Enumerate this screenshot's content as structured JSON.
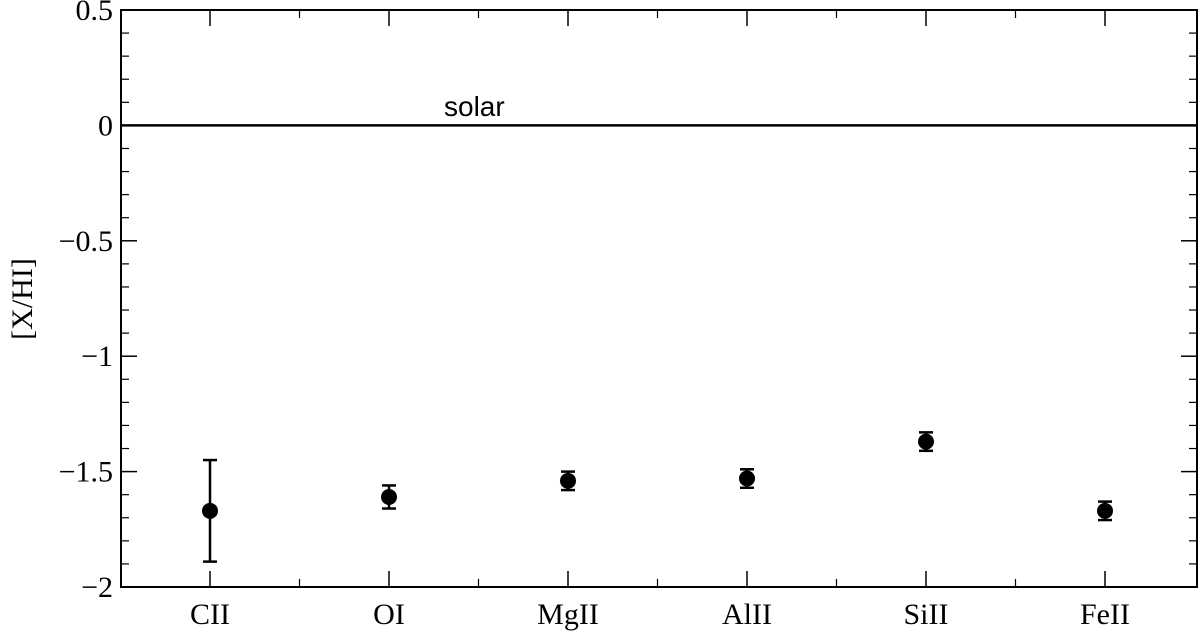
{
  "chart_data": {
    "type": "scatter",
    "title": "",
    "xlabel": "",
    "ylabel": "[X/HI]",
    "ylim": [
      -2,
      0.5
    ],
    "yticks": [
      {
        "value": 0.5,
        "label": "0.5"
      },
      {
        "value": 0,
        "label": "0"
      },
      {
        "value": -0.5,
        "label": "−0.5"
      },
      {
        "value": -1,
        "label": "−1"
      },
      {
        "value": -1.5,
        "label": "−1.5"
      },
      {
        "value": -2,
        "label": "−2"
      }
    ],
    "categories": [
      "CII",
      "OI",
      "MgII",
      "AlII",
      "SiII",
      "FeII"
    ],
    "values": [
      -1.67,
      -1.61,
      -1.54,
      -1.53,
      -1.37,
      -1.67
    ],
    "errors": [
      0.22,
      0.05,
      0.04,
      0.04,
      0.04,
      0.04
    ],
    "reference_line": {
      "y": 0,
      "label": "solar"
    },
    "grid": false,
    "legend": "none",
    "marker_color": "#000000"
  }
}
